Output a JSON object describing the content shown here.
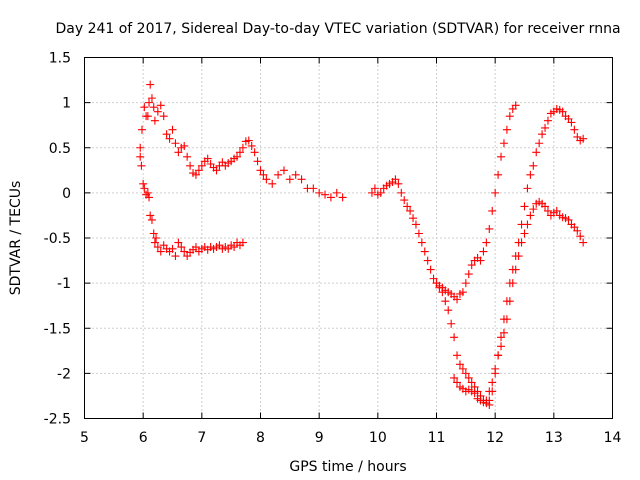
{
  "chart_data": {
    "type": "scatter",
    "title": "Day 241 of 2017, Sidereal Day-to-day VTEC variation (SDTVAR) for receiver rnna",
    "xlabel": "GPS time / hours",
    "ylabel": "SDTVAR / TECUs",
    "xlim": [
      5,
      14
    ],
    "ylim": [
      -2.5,
      1.5
    ],
    "xticks": [
      "5",
      "6",
      "7",
      "8",
      "9",
      "10",
      "11",
      "12",
      "13",
      "14"
    ],
    "yticks": [
      "1.5",
      "1",
      "0.5",
      "0",
      "-0.5",
      "-1",
      "-1.5",
      "-2",
      "-2.5"
    ],
    "grid": true,
    "marker": "+",
    "color": "#ff0000",
    "series": [
      {
        "name": "track-1-upper",
        "x": [
          5.95,
          5.98,
          6.02,
          6.05,
          6.08,
          6.1,
          6.12,
          6.15,
          6.18,
          6.2,
          6.25,
          6.3,
          6.35,
          6.4,
          6.45,
          6.5,
          6.55,
          6.6,
          6.65,
          6.7,
          6.75,
          6.8,
          6.85,
          6.9,
          6.95,
          7.0,
          7.05,
          7.1,
          7.15,
          7.2,
          7.25,
          7.3,
          7.35,
          7.4,
          7.45,
          7.5,
          7.55,
          7.6,
          7.65,
          7.7,
          7.75,
          7.8,
          7.85,
          7.9,
          7.95,
          8.0,
          8.05,
          8.1,
          8.2,
          8.3,
          8.4,
          8.5,
          8.6,
          8.7,
          8.8,
          8.9,
          9.0,
          9.1,
          9.2,
          9.3,
          9.4
        ],
        "y": [
          0.5,
          0.7,
          0.95,
          0.85,
          0.85,
          1.0,
          1.2,
          1.05,
          0.95,
          0.8,
          0.9,
          0.97,
          0.85,
          0.65,
          0.6,
          0.7,
          0.55,
          0.45,
          0.5,
          0.52,
          0.4,
          0.3,
          0.22,
          0.2,
          0.25,
          0.3,
          0.35,
          0.38,
          0.32,
          0.28,
          0.25,
          0.3,
          0.34,
          0.3,
          0.33,
          0.35,
          0.38,
          0.4,
          0.45,
          0.5,
          0.57,
          0.58,
          0.52,
          0.45,
          0.35,
          0.25,
          0.2,
          0.15,
          0.1,
          0.2,
          0.25,
          0.15,
          0.2,
          0.15,
          0.05,
          0.05,
          0.0,
          -0.02,
          -0.05,
          0.0,
          -0.05
        ]
      },
      {
        "name": "track-1-lower",
        "x": [
          5.95,
          5.97,
          6.0,
          6.02,
          6.05,
          6.08,
          6.1,
          6.12,
          6.15,
          6.18,
          6.2,
          6.22,
          6.25,
          6.3,
          6.35,
          6.4,
          6.45,
          6.5,
          6.55,
          6.6,
          6.65,
          6.7,
          6.75,
          6.8,
          6.85,
          6.9,
          6.95,
          7.0,
          7.05,
          7.1,
          7.15,
          7.2,
          7.25,
          7.3,
          7.35,
          7.4,
          7.45,
          7.5,
          7.55,
          7.6,
          7.65,
          7.7
        ],
        "y": [
          0.4,
          0.3,
          0.1,
          0.05,
          -0.02,
          0.0,
          -0.05,
          -0.25,
          -0.3,
          -0.45,
          -0.55,
          -0.5,
          -0.6,
          -0.65,
          -0.58,
          -0.62,
          -0.65,
          -0.62,
          -0.7,
          -0.55,
          -0.6,
          -0.65,
          -0.7,
          -0.66,
          -0.63,
          -0.6,
          -0.65,
          -0.62,
          -0.6,
          -0.63,
          -0.6,
          -0.62,
          -0.6,
          -0.58,
          -0.62,
          -0.6,
          -0.62,
          -0.58,
          -0.6,
          -0.55,
          -0.58,
          -0.55
        ]
      },
      {
        "name": "track-2-upper",
        "x": [
          9.9,
          9.95,
          10.0,
          10.05,
          10.1,
          10.15,
          10.2,
          10.25,
          10.3,
          10.35,
          10.4,
          10.45,
          10.5,
          10.55,
          10.6,
          10.65,
          10.7,
          10.75,
          10.8,
          10.85,
          10.9,
          10.95,
          11.0,
          11.05,
          11.1,
          11.15,
          11.2,
          11.25,
          11.3,
          11.35,
          11.4,
          11.45,
          11.5,
          11.55,
          11.6,
          11.65,
          11.7,
          11.75,
          11.8,
          11.85,
          11.9,
          11.95,
          12.0,
          12.05,
          12.1,
          12.15,
          12.2,
          12.25,
          12.3,
          12.35
        ],
        "y": [
          0.0,
          0.05,
          -0.02,
          0.0,
          0.05,
          0.08,
          0.1,
          0.12,
          0.15,
          0.1,
          0.0,
          -0.08,
          -0.15,
          -0.2,
          -0.28,
          -0.35,
          -0.45,
          -0.55,
          -0.65,
          -0.75,
          -0.85,
          -0.95,
          -1.0,
          -1.03,
          -1.05,
          -1.08,
          -1.1,
          -1.12,
          -1.15,
          -1.18,
          -1.12,
          -1.1,
          -1.0,
          -0.9,
          -0.8,
          -0.75,
          -0.72,
          -0.75,
          -0.65,
          -0.55,
          -0.4,
          -0.2,
          0.0,
          0.2,
          0.4,
          0.55,
          0.7,
          0.85,
          0.93,
          0.97
        ]
      },
      {
        "name": "track-2-lower",
        "x": [
          11.3,
          11.35,
          11.4,
          11.45,
          11.5,
          11.55,
          11.6,
          11.65,
          11.7,
          11.75,
          11.8,
          11.85,
          11.9,
          11.95,
          12.0,
          12.05,
          12.1,
          12.15,
          12.2,
          12.25,
          12.3,
          12.35,
          12.4,
          12.45,
          12.5,
          12.55,
          12.6,
          12.65,
          12.7,
          12.75,
          12.8,
          12.85,
          12.9,
          12.95,
          13.0,
          13.05,
          13.1,
          13.15,
          13.2,
          13.25,
          13.3,
          13.35,
          13.4,
          13.45,
          13.5
        ],
        "y": [
          -2.05,
          -2.1,
          -2.15,
          -2.17,
          -2.2,
          -2.18,
          -2.2,
          -2.22,
          -2.28,
          -2.3,
          -2.32,
          -2.3,
          -2.2,
          -2.1,
          -1.95,
          -1.8,
          -1.7,
          -1.55,
          -1.4,
          -1.2,
          -1.0,
          -0.85,
          -0.7,
          -0.55,
          -0.45,
          -0.35,
          -0.25,
          -0.18,
          -0.12,
          -0.1,
          -0.12,
          -0.15,
          -0.2,
          -0.25,
          -0.22,
          -0.2,
          -0.25,
          -0.27,
          -0.28,
          -0.3,
          -0.35,
          -0.38,
          -0.42,
          -0.48,
          -0.55
        ]
      },
      {
        "name": "track-3-fall",
        "x": [
          11.0,
          11.05,
          11.1,
          11.15,
          11.2,
          11.25,
          11.3,
          11.35,
          11.4,
          11.45,
          11.5,
          11.55,
          11.6,
          11.65,
          11.7,
          11.75,
          11.8,
          11.85,
          11.9
        ],
        "y": [
          -1.0,
          -1.05,
          -1.1,
          -1.2,
          -1.3,
          -1.45,
          -1.6,
          -1.8,
          -1.9,
          -1.95,
          -2.0,
          -2.05,
          -2.1,
          -2.15,
          -2.2,
          -2.25,
          -2.3,
          -2.33,
          -2.35
        ]
      },
      {
        "name": "track-3-rise",
        "x": [
          11.9,
          11.95,
          12.0,
          12.05,
          12.1,
          12.15,
          12.2,
          12.25,
          12.3,
          12.35,
          12.4,
          12.45,
          12.5,
          12.55,
          12.6,
          12.65,
          12.7,
          12.75,
          12.8,
          12.85,
          12.9,
          12.95,
          13.0,
          13.05,
          13.1,
          13.15,
          13.2,
          13.25,
          13.3,
          13.35,
          13.4,
          13.45,
          13.5
        ],
        "y": [
          -2.3,
          -2.2,
          -2.0,
          -1.8,
          -1.6,
          -1.4,
          -1.2,
          -1.0,
          -0.85,
          -0.7,
          -0.55,
          -0.35,
          -0.15,
          0.05,
          0.2,
          0.3,
          0.45,
          0.55,
          0.65,
          0.72,
          0.8,
          0.88,
          0.9,
          0.93,
          0.92,
          0.9,
          0.85,
          0.82,
          0.78,
          0.7,
          0.62,
          0.58,
          0.6
        ]
      }
    ]
  }
}
